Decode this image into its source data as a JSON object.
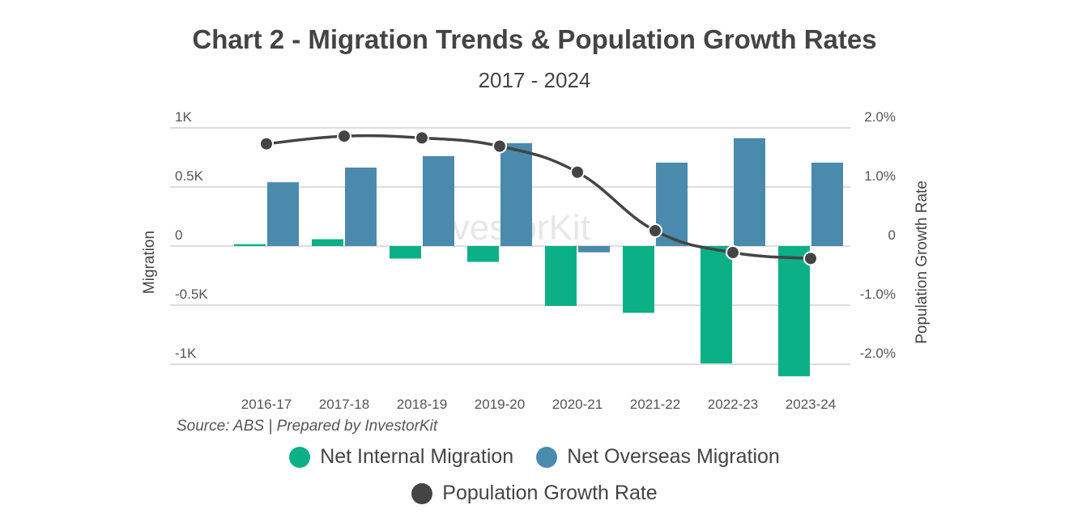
{
  "chart_data": {
    "type": "bar",
    "title": "Chart 2 - Migration Trends & Population Growth Rates",
    "subtitle": "2017 - 2024",
    "ylabel": "Migration",
    "y2label": "Population Growth Rate",
    "source": "Source: ABS | Prepared by InvestorKit",
    "watermark": "InvestorKit",
    "categories": [
      "2016-17",
      "2017-18",
      "2018-19",
      "2019-20",
      "2020-21",
      "2021-22",
      "2022-23",
      "2023-24"
    ],
    "ylim": [
      -1000,
      1000
    ],
    "yticks": [
      {
        "v": 1000,
        "label": "1K"
      },
      {
        "v": 500,
        "label": "0.5K"
      },
      {
        "v": 0,
        "label": "0"
      },
      {
        "v": -500,
        "label": "-0.5K"
      },
      {
        "v": -1000,
        "label": "-1K"
      }
    ],
    "y2lim": [
      -2.0,
      2.0
    ],
    "y2ticks": [
      {
        "v": 2,
        "label": "2.0%"
      },
      {
        "v": 1,
        "label": "1.0%"
      },
      {
        "v": 0,
        "label": "0"
      },
      {
        "v": -1,
        "label": "-1.0%"
      },
      {
        "v": -2,
        "label": "-2.0%"
      }
    ],
    "grid": true,
    "legend_position": "bottom",
    "series": [
      {
        "name": "Net Internal Migration",
        "type": "bar",
        "axis": "left",
        "color": "#0bb087",
        "values": [
          16,
          58,
          -106,
          -134,
          -507,
          -565,
          -993,
          -1102
        ]
      },
      {
        "name": "Net Overseas Migration",
        "type": "bar",
        "axis": "left",
        "color": "#4a8aad",
        "values": [
          540,
          664,
          761,
          871,
          -53,
          706,
          913,
          706
        ]
      },
      {
        "name": "Population Growth Rate",
        "type": "line",
        "axis": "right",
        "unit": "%",
        "color": "#444444",
        "values": [
          1.73,
          1.86,
          1.83,
          1.69,
          1.25,
          0.26,
          -0.11,
          -0.21
        ]
      }
    ]
  }
}
